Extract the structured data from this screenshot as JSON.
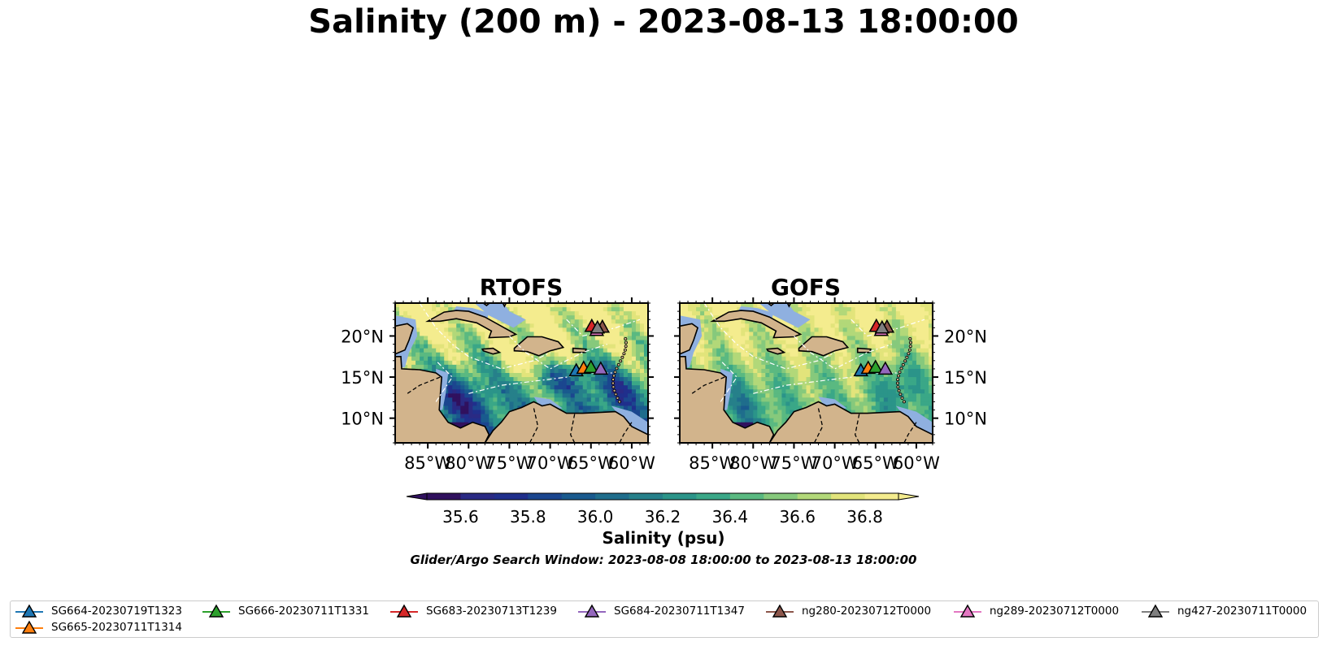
{
  "title": "Salinity (200 m) - 2023-08-13 18:00:00",
  "panels": [
    {
      "title": "RTOFS",
      "model": "rtofs"
    },
    {
      "title": "GOFS",
      "model": "gofs"
    }
  ],
  "map": {
    "lon_range": [
      -89,
      -58
    ],
    "lat_range": [
      7,
      24
    ],
    "lon_ticks": [
      -85,
      -80,
      -75,
      -70,
      -65,
      -60
    ],
    "lon_tick_labels": [
      "85°W",
      "80°W",
      "75°W",
      "70°W",
      "65°W",
      "60°W"
    ],
    "lat_ticks": [
      10,
      15,
      20
    ],
    "lat_tick_labels": [
      "10°N",
      "15°N",
      "20°N"
    ],
    "land_color": "#d2b48c",
    "shallow_color": "#8fb0e0"
  },
  "colorbar": {
    "label": "Salinity (psu)",
    "vmin": 35.5,
    "vmax": 36.9,
    "ticks": [
      35.6,
      35.8,
      36.0,
      36.2,
      36.4,
      36.6,
      36.8
    ],
    "tick_labels": [
      "35.6",
      "35.8",
      "36.0",
      "36.2",
      "36.4",
      "36.6",
      "36.8"
    ],
    "colors": [
      "#30115e",
      "#2a2a84",
      "#202f8c",
      "#1b468f",
      "#195a8e",
      "#1f6d8c",
      "#26808a",
      "#2b9489",
      "#3aa787",
      "#5ab981",
      "#86c97c",
      "#b2d879",
      "#e2e47b",
      "#f4ec8e"
    ]
  },
  "search_window": "Glider/Argo Search Window: 2023-08-08 18:00:00 to 2023-08-13 18:00:00",
  "platforms": [
    {
      "name": "SG664-20230719T1323",
      "color": "#1f77b4",
      "lon": -66.8,
      "lat": 15.8
    },
    {
      "name": "SG665-20230711T1314",
      "color": "#ff7f0e",
      "lon": -65.9,
      "lat": 16.1
    },
    {
      "name": "SG666-20230711T1331",
      "color": "#2ca02c",
      "lon": -65.0,
      "lat": 16.2
    },
    {
      "name": "SG683-20230713T1239",
      "color": "#d62728",
      "lon": -64.9,
      "lat": 21.2
    },
    {
      "name": "SG684-20230711T1347",
      "color": "#9467bd",
      "lon": -63.8,
      "lat": 16.0
    },
    {
      "name": "ng280-20230712T0000",
      "color": "#8c564b",
      "lon": -63.6,
      "lat": 21.1
    },
    {
      "name": "ng289-20230712T0000",
      "color": "#e377c2",
      "lon": -64.3,
      "lat": 20.7
    },
    {
      "name": "ng427-20230711T0000",
      "color": "#7f7f7f",
      "lon": -64.2,
      "lat": 21.0
    }
  ],
  "legend_entries": [
    "SG664-20230719T1323",
    "SG665-20230711T1314",
    "SG666-20230711T1331",
    "SG683-20230713T1239",
    "SG684-20230711T1347",
    "ng280-20230712T0000",
    "ng289-20230712T0000",
    "ng427-20230711T0000"
  ]
}
